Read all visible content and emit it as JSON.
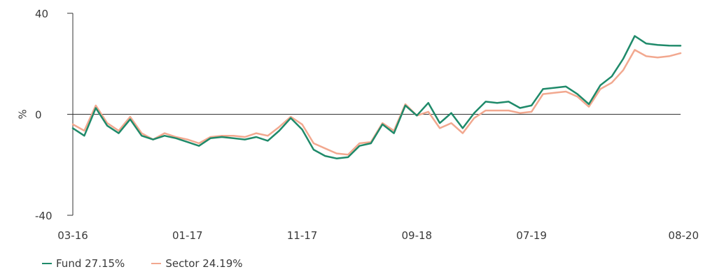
{
  "chart_data": {
    "type": "line",
    "ylabel": "%",
    "ylim": [
      -40,
      40
    ],
    "yticks": [
      "40",
      "0",
      "-40"
    ],
    "yticks_values": [
      40,
      0,
      -40
    ],
    "xticks": [
      "03-16",
      "01-17",
      "11-17",
      "09-18",
      "07-19",
      "08-20"
    ],
    "xticks_index": [
      0,
      10,
      20,
      30,
      40,
      53
    ],
    "x": [
      "03-16",
      "04-16",
      "05-16",
      "06-16",
      "07-16",
      "08-16",
      "09-16",
      "10-16",
      "11-16",
      "12-16",
      "01-17",
      "02-17",
      "03-17",
      "04-17",
      "05-17",
      "06-17",
      "07-17",
      "08-17",
      "09-17",
      "10-17",
      "11-17",
      "12-17",
      "01-18",
      "02-18",
      "03-18",
      "04-18",
      "05-18",
      "06-18",
      "07-18",
      "08-18",
      "09-18",
      "10-18",
      "11-18",
      "12-18",
      "01-19",
      "02-19",
      "03-19",
      "04-19",
      "05-19",
      "06-19",
      "07-19",
      "08-19",
      "09-19",
      "10-19",
      "11-19",
      "12-19",
      "01-20",
      "02-20",
      "03-20",
      "04-20",
      "05-20",
      "06-20",
      "07-20",
      "08-20"
    ],
    "series": [
      {
        "name": "Fund 27.15%",
        "color": "#1f8a6a",
        "values": [
          -5.5,
          -8.5,
          2.5,
          -4.5,
          -7.5,
          -2.0,
          -8.5,
          -10.0,
          -8.5,
          -9.5,
          -11.0,
          -12.5,
          -9.5,
          -9.0,
          -9.5,
          -10.0,
          -9.0,
          -10.5,
          -6.5,
          -1.5,
          -6.0,
          -14.0,
          -16.5,
          -17.5,
          -17.0,
          -12.5,
          -11.5,
          -4.0,
          -7.5,
          3.5,
          -0.5,
          4.5,
          -3.5,
          0.5,
          -5.5,
          0.5,
          5.0,
          4.5,
          5.0,
          2.5,
          3.5,
          10.0,
          10.5,
          11.0,
          8.0,
          4.0,
          11.5,
          15.0,
          22.0,
          31.0,
          28.0,
          27.5,
          27.2,
          27.15
        ]
      },
      {
        "name": "Sector 24.19%",
        "color": "#f2a88f",
        "values": [
          -4.0,
          -6.5,
          3.5,
          -3.5,
          -6.5,
          -1.0,
          -7.5,
          -10.0,
          -7.5,
          -9.0,
          -10.0,
          -11.5,
          -9.0,
          -8.5,
          -8.5,
          -9.0,
          -7.5,
          -8.5,
          -5.0,
          -1.0,
          -4.0,
          -11.5,
          -13.5,
          -15.5,
          -16.0,
          -11.5,
          -11.0,
          -3.5,
          -6.5,
          4.0,
          -0.5,
          1.0,
          -5.5,
          -3.5,
          -7.5,
          -1.5,
          1.5,
          1.5,
          1.5,
          0.5,
          1.0,
          8.0,
          8.5,
          9.0,
          7.0,
          3.0,
          10.0,
          12.5,
          17.5,
          25.5,
          23.0,
          22.5,
          23.0,
          24.19
        ]
      }
    ]
  }
}
